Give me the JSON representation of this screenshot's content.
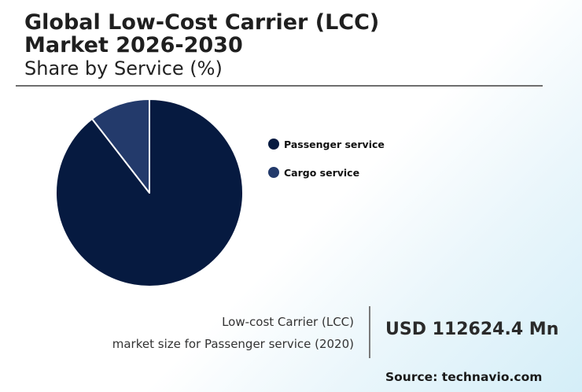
{
  "header": {
    "title_line1": "Global Low-Cost Carrier (LCC)",
    "title_line2": "Market 2026-2030",
    "subtitle": "Share by Service (%)"
  },
  "chart_data": {
    "type": "pie",
    "categories": [
      "Passenger service",
      "Cargo service"
    ],
    "values": [
      89.5,
      10.5
    ],
    "colors": [
      "#061a40",
      "#233a6b"
    ],
    "legend_position": "right",
    "start_angle": "top",
    "direction": "clockwise"
  },
  "stat": {
    "label_line1": "Low-cost Carrier (LCC)",
    "label_line2": "market size for Passenger service (2020)",
    "value": "USD 112624.4 Mn"
  },
  "footer": {
    "source": "Source: technavio.com"
  }
}
